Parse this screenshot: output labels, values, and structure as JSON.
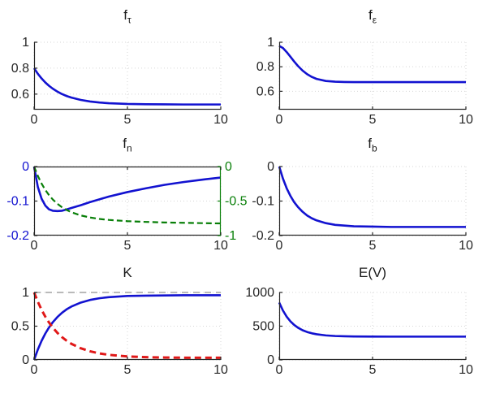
{
  "figure": {
    "background": "#ffffff",
    "grid_color": "#d6d6d6",
    "axis_color": "#262626"
  },
  "palette": {
    "blue": "#1212d0",
    "green": "#087f08",
    "red": "#e01818",
    "gray_dashed": "#909090"
  },
  "chart_data": [
    {
      "id": "f_tau",
      "type": "line",
      "title_main": "f",
      "title_sub": "τ",
      "xlim": [
        0,
        10
      ],
      "ylim": [
        0.48,
        1
      ],
      "grid": true,
      "legend": null,
      "xticks": [
        0,
        5,
        10
      ],
      "xtick_labels": [
        "0",
        "5",
        "10"
      ],
      "yticks": [
        0.6,
        0.8,
        1
      ],
      "ytick_labels": [
        "0.6",
        "0.8",
        "1"
      ],
      "x": [
        0,
        0.2,
        0.4,
        0.6,
        0.8,
        1,
        1.25,
        1.5,
        1.75,
        2,
        2.5,
        3,
        3.5,
        4,
        5,
        6,
        7,
        8,
        9,
        10
      ],
      "series": [
        {
          "name": "blue-solid",
          "color": "#1212d0",
          "width": 2.6,
          "dash": null,
          "y": [
            0.8,
            0.757,
            0.721,
            0.69,
            0.664,
            0.642,
            0.619,
            0.6,
            0.585,
            0.573,
            0.555,
            0.543,
            0.535,
            0.53,
            0.524,
            0.522,
            0.521,
            0.52,
            0.52,
            0.52
          ]
        }
      ]
    },
    {
      "id": "f_epsilon",
      "type": "line",
      "title_main": "f",
      "title_sub": "ε",
      "xlim": [
        0,
        10
      ],
      "ylim": [
        0.45,
        1
      ],
      "grid": true,
      "legend": null,
      "xticks": [
        0,
        5,
        10
      ],
      "xtick_labels": [
        "0",
        "5",
        "10"
      ],
      "yticks": [
        0.6,
        0.8,
        1
      ],
      "ytick_labels": [
        "0.6",
        "0.8",
        "1"
      ],
      "x": [
        0,
        0.2,
        0.4,
        0.6,
        0.8,
        1,
        1.25,
        1.5,
        1.75,
        2,
        2.5,
        3,
        3.5,
        4,
        5,
        6,
        7,
        8,
        9,
        10
      ],
      "series": [
        {
          "name": "blue-solid",
          "color": "#1212d0",
          "width": 2.6,
          "dash": null,
          "y": [
            0.97,
            0.953,
            0.92,
            0.882,
            0.843,
            0.807,
            0.769,
            0.739,
            0.717,
            0.701,
            0.684,
            0.678,
            0.676,
            0.675,
            0.675,
            0.675,
            0.675,
            0.675,
            0.675,
            0.675
          ]
        }
      ]
    },
    {
      "id": "f_n",
      "type": "line",
      "title_main": "f",
      "title_sub": "n",
      "xlim": [
        0,
        10
      ],
      "ylim": [
        -0.2,
        0
      ],
      "grid": true,
      "legend": null,
      "box_top": true,
      "xticks": [
        0,
        5,
        10
      ],
      "xtick_labels": [
        "0",
        "5",
        "10"
      ],
      "yticks": [
        0,
        -0.1,
        -0.2
      ],
      "ytick_labels": [
        "0",
        "-0.1",
        "-0.2"
      ],
      "ytick_color": "#1212d0",
      "right_axis": {
        "ylim": [
          -1,
          0
        ],
        "yticks": [
          0,
          -0.5,
          -1
        ],
        "ytick_labels": [
          "0",
          "-0.5",
          "-1"
        ],
        "color": "#087f08"
      },
      "x": [
        0,
        0.2,
        0.4,
        0.6,
        0.8,
        1,
        1.25,
        1.5,
        1.75,
        2,
        2.5,
        3,
        3.5,
        4,
        5,
        6,
        7,
        8,
        9,
        10
      ],
      "series": [
        {
          "name": "blue-solid-left-axis",
          "color": "#1212d0",
          "width": 2.6,
          "dash": null,
          "y": [
            0,
            -0.059,
            -0.093,
            -0.113,
            -0.124,
            -0.128,
            -0.129,
            -0.128,
            -0.124,
            -0.12,
            -0.112,
            -0.103,
            -0.095,
            -0.087,
            -0.074,
            -0.063,
            -0.053,
            -0.045,
            -0.038,
            -0.032
          ]
        },
        {
          "name": "green-dashed-right-axis",
          "color": "#087f08",
          "width": 2.2,
          "dash": "7,4",
          "axis": "right",
          "y": [
            0,
            -0.135,
            -0.247,
            -0.338,
            -0.414,
            -0.477,
            -0.54,
            -0.591,
            -0.63,
            -0.662,
            -0.708,
            -0.738,
            -0.759,
            -0.773,
            -0.791,
            -0.802,
            -0.81,
            -0.815,
            -0.82,
            -0.824
          ]
        }
      ]
    },
    {
      "id": "f_b",
      "type": "line",
      "title_main": "f",
      "title_sub": "b",
      "xlim": [
        0,
        10
      ],
      "ylim": [
        -0.2,
        0
      ],
      "grid": true,
      "legend": null,
      "xticks": [
        0,
        5,
        10
      ],
      "xtick_labels": [
        "0",
        "5",
        "10"
      ],
      "yticks": [
        0,
        -0.1,
        -0.2
      ],
      "ytick_labels": [
        "0",
        "-0.1",
        "-0.2"
      ],
      "x": [
        0,
        0.2,
        0.4,
        0.6,
        0.8,
        1,
        1.25,
        1.5,
        1.75,
        2,
        2.5,
        3,
        3.5,
        4,
        5,
        6,
        7,
        8,
        9,
        10
      ],
      "series": [
        {
          "name": "blue-solid",
          "color": "#1212d0",
          "width": 2.6,
          "dash": null,
          "y": [
            0,
            -0.035,
            -0.063,
            -0.085,
            -0.103,
            -0.117,
            -0.131,
            -0.142,
            -0.15,
            -0.156,
            -0.164,
            -0.169,
            -0.171,
            -0.173,
            -0.174,
            -0.175,
            -0.175,
            -0.175,
            -0.175,
            -0.175
          ]
        }
      ]
    },
    {
      "id": "K",
      "type": "line",
      "title_main": "K",
      "title_sub": "",
      "xlim": [
        0,
        10
      ],
      "ylim": [
        0,
        1
      ],
      "grid": true,
      "legend": null,
      "xticks": [
        0,
        5,
        10
      ],
      "xtick_labels": [
        "0",
        "5",
        "10"
      ],
      "yticks": [
        0,
        0.5,
        1
      ],
      "ytick_labels": [
        "0",
        "0.5",
        "1"
      ],
      "ref_lines": [
        {
          "y": 1,
          "color": "#909090",
          "dash": "8,6",
          "width": 1.2
        }
      ],
      "x": [
        0,
        0.2,
        0.4,
        0.6,
        0.8,
        1,
        1.25,
        1.5,
        1.75,
        2,
        2.5,
        3,
        3.5,
        4,
        5,
        6,
        7,
        8,
        9,
        10
      ],
      "series": [
        {
          "name": "blue-solid-rising",
          "color": "#1212d0",
          "width": 2.6,
          "dash": null,
          "y": [
            0,
            0.153,
            0.282,
            0.39,
            0.481,
            0.558,
            0.636,
            0.7,
            0.751,
            0.791,
            0.85,
            0.889,
            0.914,
            0.93,
            0.948,
            0.953,
            0.956,
            0.958,
            0.959,
            0.959
          ]
        },
        {
          "name": "red-dashed-decaying",
          "color": "#e01818",
          "width": 3,
          "dash": "8,5",
          "y": [
            1.0,
            0.862,
            0.743,
            0.641,
            0.554,
            0.479,
            0.4,
            0.336,
            0.282,
            0.238,
            0.172,
            0.127,
            0.096,
            0.075,
            0.051,
            0.04,
            0.035,
            0.032,
            0.031,
            0.031
          ]
        }
      ]
    },
    {
      "id": "E_V",
      "type": "line",
      "title_main": "E(V)",
      "title_sub": "",
      "xlim": [
        0,
        10
      ],
      "ylim": [
        0,
        1000
      ],
      "grid": true,
      "legend": null,
      "xticks": [
        0,
        5,
        10
      ],
      "xtick_labels": [
        "0",
        "5",
        "10"
      ],
      "yticks": [
        0,
        500,
        1000
      ],
      "ytick_labels": [
        "0",
        "500",
        "1000"
      ],
      "x": [
        0,
        0.2,
        0.4,
        0.6,
        0.8,
        1,
        1.25,
        1.5,
        1.75,
        2,
        2.5,
        3,
        3.5,
        4,
        5,
        6,
        7,
        8,
        9,
        10
      ],
      "series": [
        {
          "name": "blue-solid",
          "color": "#1212d0",
          "width": 2.6,
          "dash": null,
          "y": [
            850,
            732,
            641,
            572,
            519,
            478,
            440,
            413,
            394,
            380,
            363,
            354,
            350,
            347,
            346,
            345,
            345,
            345,
            345,
            345
          ]
        }
      ]
    }
  ]
}
